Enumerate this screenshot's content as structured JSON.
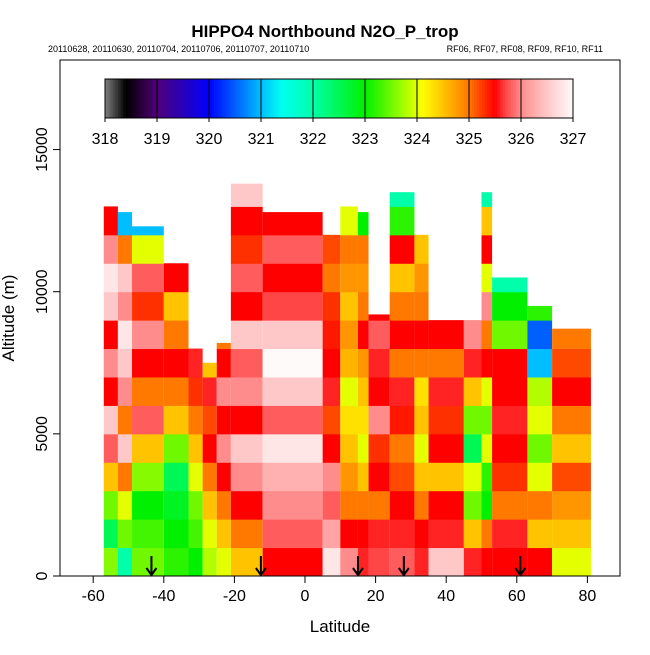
{
  "chart_data": {
    "type": "heatmap",
    "title": "HIPPO4 Northbound N2O_P_trop",
    "subtitle_left": "20110628, 20110630, 20110704, 20110706, 20110707, 20110710",
    "subtitle_right": "RF06, RF07, RF08, RF09, RF10, RF11",
    "xlabel": "Latitude",
    "ylabel": "Altitude (m)",
    "xlim": [
      -70,
      90
    ],
    "ylim": [
      0,
      18200
    ],
    "xticks": [
      -60,
      -40,
      -20,
      0,
      20,
      40,
      60,
      80
    ],
    "yticks": [
      0,
      5000,
      10000,
      15000
    ],
    "colorbar": {
      "ticks": [
        "318",
        "319",
        "320",
        "321",
        "322",
        "323",
        "324",
        "325",
        "326",
        "327"
      ],
      "range": [
        318,
        327
      ]
    },
    "altitude_band_m": 1000,
    "columns": [
      {
        "lat": [
          -57,
          -53
        ],
        "top": 13000,
        "values": [
          323.6,
          322.5,
          323.5,
          324.5,
          325.8,
          326.5,
          325.5,
          326,
          325.5,
          326.5,
          326.8,
          326,
          325.5
        ]
      },
      {
        "lat": [
          -53,
          -49
        ],
        "top": 12800,
        "values": [
          322,
          323.5,
          324,
          325,
          326.5,
          325,
          326,
          326.5,
          326.8,
          326,
          326.5,
          325,
          321
        ]
      },
      {
        "lat": [
          -49,
          -40
        ],
        "top": 12300,
        "values": [
          323.5,
          323.3,
          323,
          323.6,
          324.5,
          325.8,
          325,
          325.5,
          326,
          325.3,
          325.8,
          324,
          321
        ]
      },
      {
        "lat": [
          -40,
          -33
        ],
        "top": 11000,
        "values": [
          323.2,
          323,
          322.8,
          322.5,
          323.5,
          324.5,
          325,
          325.5,
          325,
          324.5,
          325.5
        ]
      },
      {
        "lat": [
          -33,
          -29
        ],
        "top": 8000,
        "values": [
          323,
          323.3,
          323.5,
          324,
          324.5,
          325,
          325.3,
          325.6
        ]
      },
      {
        "lat": [
          -29,
          -25
        ],
        "top": 7500,
        "values": [
          323.8,
          324,
          324.5,
          325,
          325.5,
          325.2,
          325.6,
          324.5
        ]
      },
      {
        "lat": [
          -25,
          -21
        ],
        "top": 8200,
        "values": [
          324,
          324.5,
          325,
          325.5,
          326,
          325.5,
          326,
          325.5,
          325
        ]
      },
      {
        "lat": [
          -21,
          -12
        ],
        "top": 13800,
        "values": [
          324.5,
          325,
          325.5,
          326,
          326.5,
          325.5,
          326,
          325.8,
          326.5,
          325.5,
          325.8,
          325.3,
          325.5,
          326.5
        ]
      },
      {
        "lat": [
          -12,
          5
        ],
        "top": 12800,
        "values": [
          325.5,
          325.8,
          326,
          326.3,
          326.8,
          325.8,
          326.5,
          327,
          326.5,
          325.7,
          325.5,
          325.8,
          325.5
        ]
      },
      {
        "lat": [
          5,
          10
        ],
        "top": 12000,
        "values": [
          326.8,
          326.2,
          325.8,
          326,
          325.5,
          325.2,
          325.6,
          325.5,
          325.4,
          325.3,
          325,
          325.2
        ]
      },
      {
        "lat": [
          10,
          15
        ],
        "top": 13000,
        "values": [
          326,
          325.5,
          325,
          324.8,
          324.5,
          324.3,
          324,
          324.6,
          324.8,
          324.5,
          324.8,
          325,
          324
        ]
      },
      {
        "lat": [
          15,
          18
        ],
        "top": 12800,
        "values": [
          325.6,
          325.5,
          325,
          324.5,
          324,
          324.3,
          324.5,
          324.8,
          325.5,
          325,
          324.8,
          325,
          323
        ]
      },
      {
        "lat": [
          18,
          24
        ],
        "top": 9200,
        "values": [
          325.7,
          325.6,
          325,
          325.5,
          325.3,
          326,
          325.5,
          325.6,
          325.8,
          325.5
        ]
      },
      {
        "lat": [
          24,
          31
        ],
        "top": 13500,
        "values": [
          325.8,
          325.6,
          325.5,
          325.2,
          325,
          325.4,
          325.6,
          325,
          325.5,
          325,
          324.5,
          325.5,
          323.2,
          322
        ]
      },
      {
        "lat": [
          31,
          35
        ],
        "top": 12000,
        "values": [
          325.6,
          325.5,
          325,
          324.5,
          324,
          324.5,
          324.3,
          325,
          325.5,
          325,
          324.8,
          324.5
        ]
      },
      {
        "lat": [
          35,
          45
        ],
        "top": 9000,
        "values": [
          326.5,
          325.6,
          325.5,
          324.5,
          325.5,
          325.3,
          325.6,
          325,
          325.5
        ]
      },
      {
        "lat": [
          45,
          50
        ],
        "top": 9000,
        "values": [
          325.6,
          324.5,
          323.5,
          324,
          322.5,
          323.5,
          324.5,
          325.6,
          326
        ]
      },
      {
        "lat": [
          50,
          53
        ],
        "top": 13500,
        "values": [
          325.5,
          325,
          323,
          323.2,
          324,
          323.5,
          324,
          325.5,
          325,
          326,
          324,
          325.5,
          324.5,
          322
        ]
      },
      {
        "lat": [
          53,
          63
        ],
        "top": 10500,
        "values": [
          325.5,
          325.6,
          325,
          325.3,
          325.5,
          325.6,
          325.5,
          325.5,
          323.5,
          323,
          322
        ]
      },
      {
        "lat": [
          63,
          70
        ],
        "top": 9500,
        "values": [
          325.5,
          324.5,
          325,
          324,
          323.5,
          324,
          323.8,
          321,
          320.5,
          323.2
        ]
      },
      {
        "lat": [
          70,
          81
        ],
        "top": 8700,
        "values": [
          324,
          324.5,
          324.8,
          325.2,
          324.5,
          325,
          325.5,
          325.2,
          325
        ]
      }
    ],
    "flight_arrows_lat": [
      -43.5,
      -12.5,
      15,
      28,
      61
    ]
  }
}
